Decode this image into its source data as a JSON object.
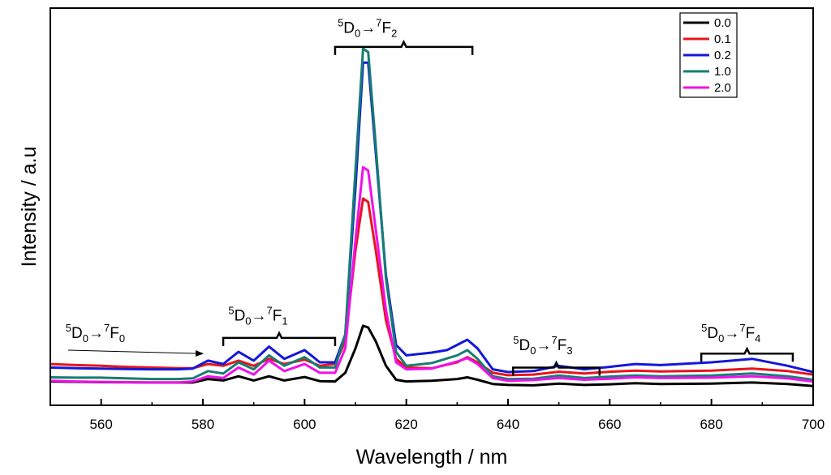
{
  "chart_data": {
    "type": "line",
    "title": "",
    "xlabel": "Wavelength / nm",
    "ylabel": "Intensity / a.u",
    "xlim": [
      550,
      700
    ],
    "ylim": [
      0,
      100
    ],
    "xticks": [
      560,
      580,
      600,
      620,
      640,
      660,
      680,
      700
    ],
    "grid": false,
    "legend_position": "top-right",
    "series": [
      {
        "name": "0.0",
        "color": "#000000",
        "points": [
          [
            550,
            4.5
          ],
          [
            560,
            4.3
          ],
          [
            570,
            4.2
          ],
          [
            578,
            4.2
          ],
          [
            581,
            5.2
          ],
          [
            584,
            4.8
          ],
          [
            587,
            6
          ],
          [
            590,
            4.8
          ],
          [
            593,
            6
          ],
          [
            596,
            4.8
          ],
          [
            600,
            5.8
          ],
          [
            603,
            4.6
          ],
          [
            606,
            4.5
          ],
          [
            608,
            7
          ],
          [
            610,
            14
          ],
          [
            611.5,
            20.5
          ],
          [
            612.5,
            20
          ],
          [
            614,
            16
          ],
          [
            616,
            9
          ],
          [
            618,
            5
          ],
          [
            620,
            4.5
          ],
          [
            625,
            4.7
          ],
          [
            630,
            5.2
          ],
          [
            632,
            5.7
          ],
          [
            634,
            5
          ],
          [
            637,
            3.8
          ],
          [
            640,
            3.5
          ],
          [
            645,
            3.4
          ],
          [
            650,
            3.9
          ],
          [
            655,
            3.5
          ],
          [
            660,
            3.7
          ],
          [
            665,
            4
          ],
          [
            670,
            3.8
          ],
          [
            680,
            3.9
          ],
          [
            688,
            4.2
          ],
          [
            695,
            3.8
          ],
          [
            700,
            3.2
          ]
        ]
      },
      {
        "name": "0.1",
        "color": "#e8141c",
        "points": [
          [
            550,
            9.5
          ],
          [
            555,
            9.2
          ],
          [
            560,
            9
          ],
          [
            565,
            8.7
          ],
          [
            570,
            8.5
          ],
          [
            575,
            8.3
          ],
          [
            578,
            8.3
          ],
          [
            581,
            9.5
          ],
          [
            584,
            9
          ],
          [
            587,
            10.5
          ],
          [
            590,
            9
          ],
          [
            593,
            11
          ],
          [
            596,
            9.5
          ],
          [
            600,
            10.8
          ],
          [
            603,
            9
          ],
          [
            606,
            9.5
          ],
          [
            608,
            16
          ],
          [
            610,
            42
          ],
          [
            611.5,
            57
          ],
          [
            612.5,
            56
          ],
          [
            614,
            42
          ],
          [
            616,
            22
          ],
          [
            618,
            11
          ],
          [
            620,
            8.5
          ],
          [
            625,
            8.3
          ],
          [
            630,
            10
          ],
          [
            632,
            11.5
          ],
          [
            634,
            10
          ],
          [
            637,
            7
          ],
          [
            640,
            6.3
          ],
          [
            645,
            6.5
          ],
          [
            650,
            7.3
          ],
          [
            655,
            6.8
          ],
          [
            660,
            7.3
          ],
          [
            665,
            7.6
          ],
          [
            670,
            7.4
          ],
          [
            680,
            7.6
          ],
          [
            688,
            8.2
          ],
          [
            695,
            7.5
          ],
          [
            700,
            6.5
          ]
        ]
      },
      {
        "name": "0.2",
        "color": "#1418d8",
        "points": [
          [
            550,
            8.5
          ],
          [
            555,
            8.3
          ],
          [
            560,
            8.2
          ],
          [
            565,
            8.1
          ],
          [
            570,
            8
          ],
          [
            575,
            8
          ],
          [
            578,
            8.2
          ],
          [
            581,
            10.5
          ],
          [
            584,
            9.5
          ],
          [
            587,
            13
          ],
          [
            590,
            10.5
          ],
          [
            593,
            14.5
          ],
          [
            596,
            11
          ],
          [
            600,
            13.5
          ],
          [
            603,
            10
          ],
          [
            606,
            10
          ],
          [
            608,
            18
          ],
          [
            610,
            60
          ],
          [
            611.5,
            96
          ],
          [
            612.5,
            96
          ],
          [
            614,
            70
          ],
          [
            616,
            35
          ],
          [
            618,
            15
          ],
          [
            620,
            12
          ],
          [
            625,
            12.8
          ],
          [
            628,
            13.5
          ],
          [
            630,
            15
          ],
          [
            632,
            16.5
          ],
          [
            634,
            14
          ],
          [
            637,
            8
          ],
          [
            640,
            7.2
          ],
          [
            645,
            7.5
          ],
          [
            650,
            9
          ],
          [
            655,
            8
          ],
          [
            660,
            8.7
          ],
          [
            665,
            9.5
          ],
          [
            670,
            9.2
          ],
          [
            680,
            10
          ],
          [
            688,
            11
          ],
          [
            695,
            9
          ],
          [
            700,
            7.2
          ]
        ]
      },
      {
        "name": "1.0",
        "color": "#167d73",
        "points": [
          [
            550,
            5.7
          ],
          [
            555,
            5.6
          ],
          [
            560,
            5.6
          ],
          [
            565,
            5.4
          ],
          [
            570,
            5.2
          ],
          [
            575,
            5.2
          ],
          [
            578,
            5.4
          ],
          [
            581,
            7.5
          ],
          [
            584,
            6.8
          ],
          [
            587,
            10
          ],
          [
            590,
            8
          ],
          [
            593,
            12
          ],
          [
            596,
            9
          ],
          [
            600,
            11.5
          ],
          [
            603,
            8.5
          ],
          [
            606,
            8.5
          ],
          [
            608,
            18
          ],
          [
            610,
            65
          ],
          [
            611.5,
            100
          ],
          [
            612.5,
            99
          ],
          [
            614,
            72
          ],
          [
            616,
            34
          ],
          [
            618,
            13
          ],
          [
            620,
            9
          ],
          [
            625,
            9.8
          ],
          [
            630,
            12
          ],
          [
            632,
            13.5
          ],
          [
            634,
            11
          ],
          [
            637,
            6
          ],
          [
            640,
            5.2
          ],
          [
            645,
            5.3
          ],
          [
            650,
            6.2
          ],
          [
            655,
            5.5
          ],
          [
            660,
            5.9
          ],
          [
            665,
            6.2
          ],
          [
            670,
            6
          ],
          [
            680,
            6.2
          ],
          [
            688,
            6.8
          ],
          [
            695,
            6
          ],
          [
            700,
            5
          ]
        ]
      },
      {
        "name": "2.0",
        "color": "#f010ea",
        "points": [
          [
            550,
            4.7
          ],
          [
            555,
            4.5
          ],
          [
            560,
            4.4
          ],
          [
            565,
            4.3
          ],
          [
            570,
            4.2
          ],
          [
            575,
            4.2
          ],
          [
            578,
            4.5
          ],
          [
            581,
            6
          ],
          [
            584,
            5.5
          ],
          [
            587,
            8.5
          ],
          [
            590,
            6.5
          ],
          [
            593,
            10.5
          ],
          [
            596,
            7.5
          ],
          [
            600,
            9.5
          ],
          [
            603,
            7
          ],
          [
            606,
            7
          ],
          [
            608,
            14
          ],
          [
            610,
            45
          ],
          [
            611.5,
            66
          ],
          [
            612.5,
            65
          ],
          [
            614,
            48
          ],
          [
            616,
            25
          ],
          [
            618,
            10
          ],
          [
            620,
            8
          ],
          [
            625,
            8.2
          ],
          [
            630,
            10.2
          ],
          [
            632,
            11.2
          ],
          [
            634,
            9.5
          ],
          [
            637,
            5.5
          ],
          [
            640,
            4.7
          ],
          [
            645,
            4.9
          ],
          [
            650,
            5.5
          ],
          [
            655,
            5
          ],
          [
            660,
            5.3
          ],
          [
            665,
            5.7
          ],
          [
            670,
            5.5
          ],
          [
            680,
            5.6
          ],
          [
            688,
            6
          ],
          [
            695,
            5.4
          ],
          [
            700,
            4.5
          ]
        ]
      }
    ],
    "annotations": [
      {
        "id": "f0",
        "sup1": "5",
        "mid1": "D",
        "sub1": "0",
        "arrow": "→",
        "sup2": "7",
        "mid2": "F",
        "sub2": "0",
        "x": 553,
        "y": 17,
        "pointer_to": [
          580,
          12.5
        ]
      },
      {
        "id": "f1",
        "sup1": "5",
        "mid1": "D",
        "sub1": "0",
        "arrow": "→",
        "sup2": "7",
        "mid2": "F",
        "sub2": "1",
        "x": 585,
        "y": 22,
        "bracket": [
          584,
          606
        ],
        "bracket_y": 17
      },
      {
        "id": "f2",
        "sup1": "5",
        "mid1": "D",
        "sub1": "0",
        "arrow": "→",
        "sup2": "7",
        "mid2": "F",
        "sub2": "2",
        "x": 606.5,
        "y": 104.5,
        "bracket": [
          606,
          633
        ],
        "bracket_y": 100.5
      },
      {
        "id": "f3",
        "sup1": "5",
        "mid1": "D",
        "sub1": "0",
        "arrow": "→",
        "sup2": "7",
        "mid2": "F",
        "sub2": "3",
        "x": 641,
        "y": 13.5,
        "bracket": [
          641,
          658
        ],
        "bracket_y": 8.5
      },
      {
        "id": "f4",
        "sup1": "5",
        "mid1": "D",
        "sub1": "0",
        "arrow": "→",
        "sup2": "7",
        "mid2": "F",
        "sub2": "4",
        "x": 678,
        "y": 17,
        "bracket": [
          678,
          696
        ],
        "bracket_y": 12.5
      }
    ]
  }
}
